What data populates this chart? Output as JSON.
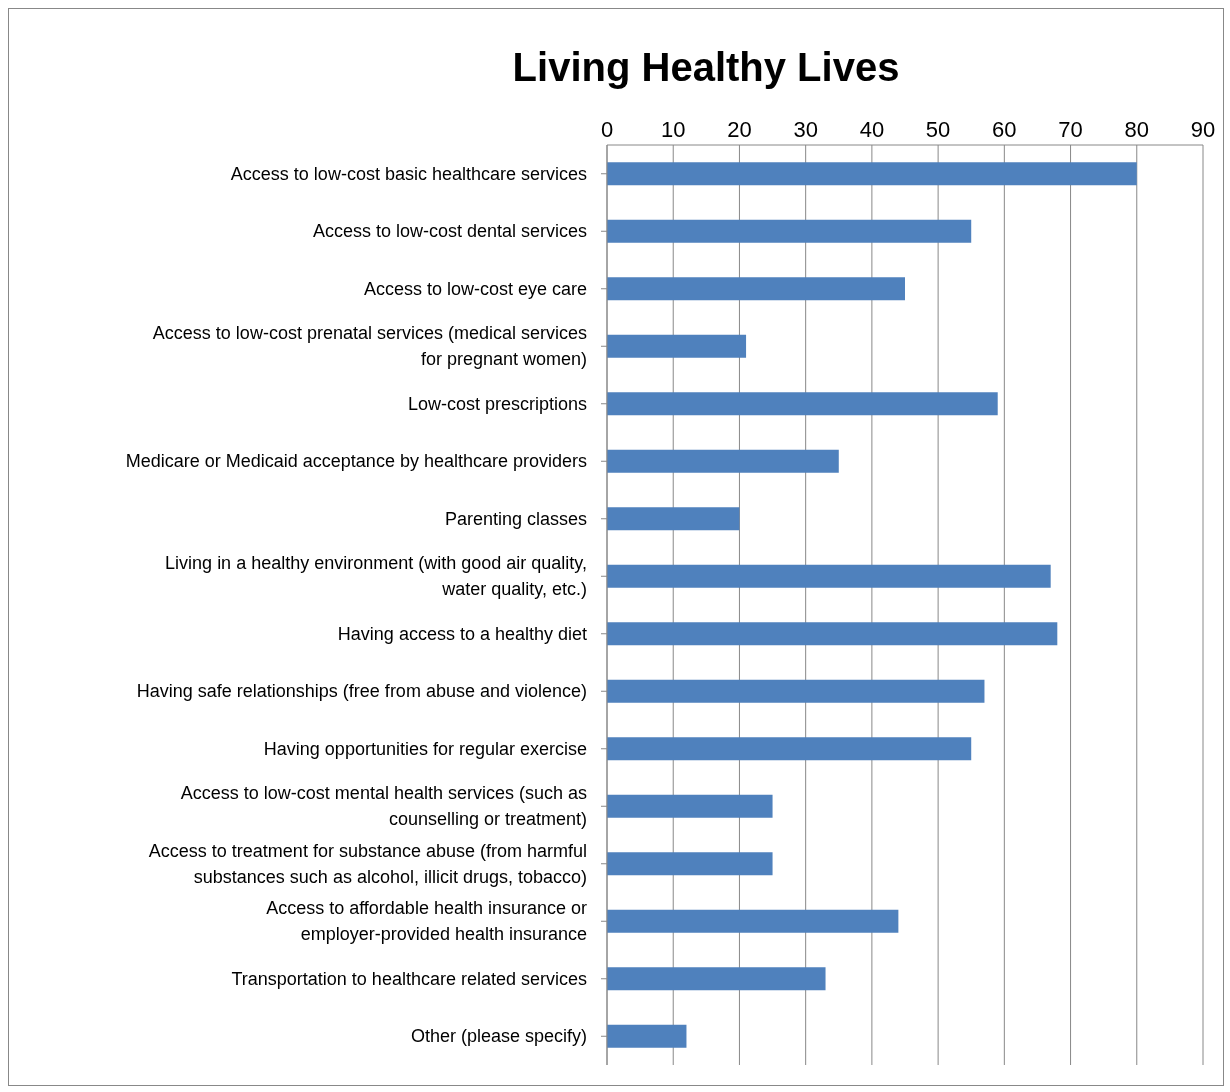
{
  "chart_data": {
    "type": "bar",
    "orientation": "horizontal",
    "title": "Living Healthy Lives",
    "categories": [
      "Access to low-cost basic healthcare services",
      "Access to low-cost dental services",
      "Access to low-cost eye care",
      "Access to low-cost prenatal services (medical services for pregnant women)",
      "Low-cost prescriptions",
      "Medicare or Medicaid acceptance by healthcare providers",
      "Parenting classes",
      "Living in a healthy environment (with good air quality, water quality, etc.)",
      "Having access to a healthy diet",
      "Having safe relationships (free from abuse and violence)",
      "Having opportunities for regular exercise",
      "Access to low-cost mental health services (such as counselling or treatment)",
      "Access to treatment for substance abuse (from harmful substances such as alcohol, illicit drugs, tobacco)",
      "Access to affordable health insurance or employer-provided health insurance",
      "Transportation to healthcare related services",
      "Other (please specify)"
    ],
    "values": [
      80,
      55,
      45,
      21,
      59,
      35,
      20,
      67,
      68,
      57,
      55,
      25,
      25,
      44,
      33,
      12
    ],
    "color": "#4f81bd",
    "xlim": [
      0,
      90
    ],
    "xticks": [
      0,
      10,
      20,
      30,
      40,
      50,
      60,
      70,
      80,
      90
    ],
    "grid": "x",
    "legend": false
  }
}
